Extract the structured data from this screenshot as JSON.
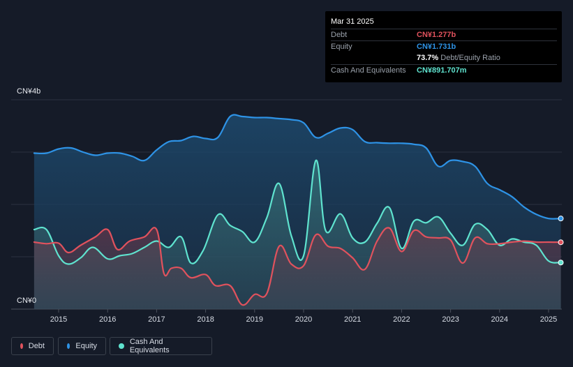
{
  "tooltip": {
    "date": "Mar 31 2025",
    "debt_label": "Debt",
    "debt_value": "CN¥1.277b",
    "equity_label": "Equity",
    "equity_value": "CN¥1.731b",
    "ratio_value": "73.7%",
    "ratio_label": "Debt/Equity Ratio",
    "cash_label": "Cash And Equivalents",
    "cash_value": "CN¥891.707m"
  },
  "legend": {
    "debt": "Debt",
    "equity": "Equity",
    "cash": "Cash And Equivalents"
  },
  "colors": {
    "debt": "#e0525d",
    "equity": "#2e93e6",
    "cash": "#5fe3cf",
    "background": "#151b28"
  },
  "chart_data": {
    "type": "area",
    "y_top_label": "CN¥4b",
    "y_bottom_label": "CN¥0",
    "ylim": [
      0,
      4
    ],
    "xlim": [
      2014.45,
      2025.25
    ],
    "x_ticks": [
      "2015",
      "2016",
      "2017",
      "2018",
      "2019",
      "2020",
      "2021",
      "2022",
      "2023",
      "2024",
      "2025"
    ],
    "grid": true,
    "series": [
      {
        "name": "Equity",
        "key": "equity",
        "x": [
          2014.5,
          2014.75,
          2015,
          2015.25,
          2015.5,
          2015.75,
          2016,
          2016.25,
          2016.5,
          2016.75,
          2017,
          2017.25,
          2017.5,
          2017.75,
          2018,
          2018.25,
          2018.5,
          2018.75,
          2019,
          2019.25,
          2019.5,
          2019.75,
          2020,
          2020.25,
          2020.5,
          2020.75,
          2021,
          2021.25,
          2021.5,
          2021.75,
          2022,
          2022.25,
          2022.5,
          2022.75,
          2023,
          2023.25,
          2023.5,
          2023.75,
          2024,
          2024.25,
          2024.5,
          2024.75,
          2025,
          2025.25
        ],
        "values": [
          2.98,
          2.98,
          3.06,
          3.08,
          3.0,
          2.94,
          2.98,
          2.98,
          2.92,
          2.84,
          3.04,
          3.2,
          3.22,
          3.3,
          3.26,
          3.28,
          3.68,
          3.68,
          3.66,
          3.66,
          3.64,
          3.62,
          3.56,
          3.28,
          3.36,
          3.46,
          3.43,
          3.2,
          3.18,
          3.17,
          3.17,
          3.15,
          3.08,
          2.73,
          2.84,
          2.82,
          2.73,
          2.4,
          2.28,
          2.15,
          1.95,
          1.81,
          1.731,
          1.731
        ]
      },
      {
        "name": "Debt",
        "key": "debt",
        "x": [
          2014.5,
          2014.75,
          2015,
          2015.2,
          2015.45,
          2015.75,
          2016,
          2016.2,
          2016.45,
          2016.75,
          2017,
          2017.15,
          2017.3,
          2017.5,
          2017.7,
          2018,
          2018.2,
          2018.5,
          2018.75,
          2019,
          2019.25,
          2019.5,
          2019.75,
          2020,
          2020.25,
          2020.5,
          2020.75,
          2021,
          2021.25,
          2021.5,
          2021.75,
          2022,
          2022.25,
          2022.5,
          2022.75,
          2023,
          2023.25,
          2023.5,
          2023.75,
          2024,
          2024.25,
          2024.5,
          2024.75,
          2025,
          2025.25
        ],
        "values": [
          1.28,
          1.25,
          1.26,
          1.08,
          1.22,
          1.38,
          1.52,
          1.14,
          1.3,
          1.38,
          1.52,
          0.68,
          0.78,
          0.78,
          0.6,
          0.66,
          0.45,
          0.45,
          0.08,
          0.28,
          0.3,
          1.2,
          0.86,
          0.83,
          1.42,
          1.2,
          1.16,
          0.98,
          0.76,
          1.3,
          1.55,
          1.1,
          1.5,
          1.38,
          1.36,
          1.32,
          0.88,
          1.36,
          1.25,
          1.25,
          1.28,
          1.3,
          1.28,
          1.28,
          1.277
        ]
      },
      {
        "name": "Cash And Equivalents",
        "key": "cash",
        "x": [
          2014.5,
          2014.75,
          2015,
          2015.2,
          2015.45,
          2015.7,
          2016,
          2016.25,
          2016.5,
          2016.75,
          2017,
          2017.25,
          2017.5,
          2017.7,
          2017.95,
          2018.25,
          2018.5,
          2018.75,
          2019,
          2019.25,
          2019.5,
          2019.75,
          2020,
          2020.25,
          2020.45,
          2020.75,
          2021,
          2021.25,
          2021.5,
          2021.75,
          2022,
          2022.25,
          2022.5,
          2022.75,
          2023,
          2023.25,
          2023.5,
          2023.75,
          2024,
          2024.25,
          2024.5,
          2024.75,
          2025,
          2025.25
        ],
        "values": [
          1.52,
          1.52,
          1.02,
          0.86,
          0.98,
          1.18,
          0.96,
          1.02,
          1.06,
          1.18,
          1.3,
          1.18,
          1.38,
          0.88,
          1.12,
          1.8,
          1.6,
          1.48,
          1.28,
          1.75,
          2.4,
          1.4,
          1.02,
          2.84,
          1.5,
          1.82,
          1.36,
          1.28,
          1.64,
          1.94,
          1.16,
          1.68,
          1.65,
          1.76,
          1.45,
          1.22,
          1.62,
          1.52,
          1.22,
          1.34,
          1.28,
          1.22,
          0.92,
          0.89
        ]
      }
    ]
  }
}
